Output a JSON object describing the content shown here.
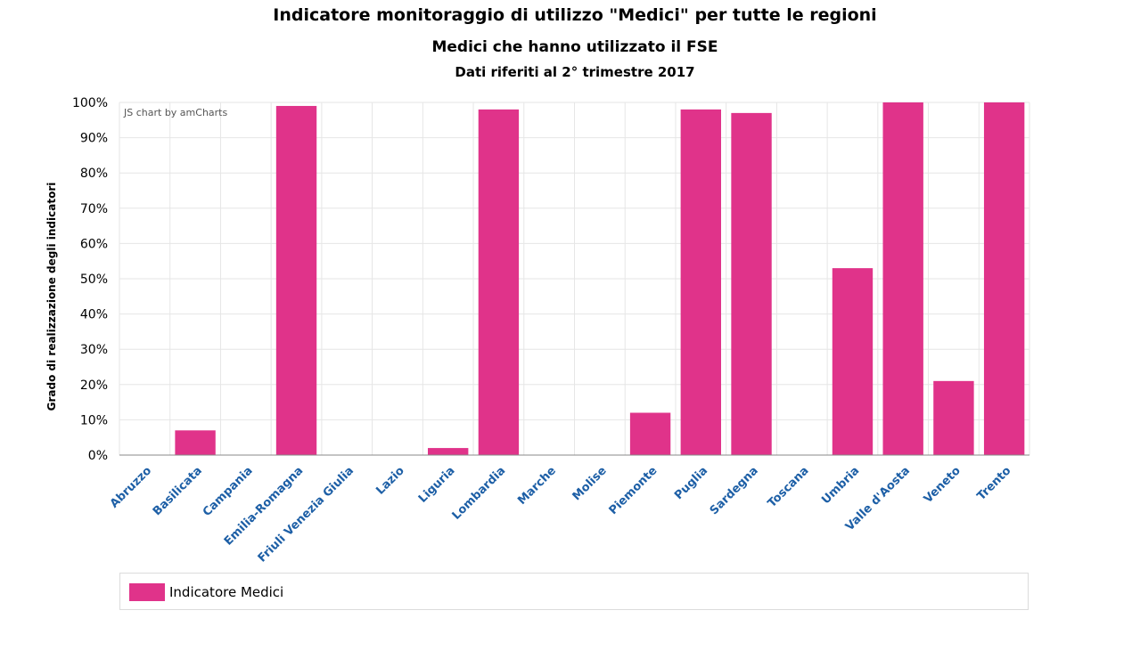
{
  "header": {
    "title": "Indicatore monitoraggio di utilizzo \"Medici\" per tutte le regioni",
    "subtitle": "Medici che hanno utilizzato il FSE",
    "subtitle2": "Dati riferiti al 2° trimestre 2017"
  },
  "credit": "JS chart by amCharts",
  "colors": {
    "bar": "#e0338a",
    "tick_label": "#1d5fa6",
    "grid": "#e6e6e6"
  },
  "chart_data": {
    "type": "bar",
    "categories": [
      "Abruzzo",
      "Basilicata",
      "Campania",
      "Emilia-Romagna",
      "Friuli Venezia Giulia",
      "Lazio",
      "Liguria",
      "Lombardia",
      "Marche",
      "Molise",
      "Piemonte",
      "Puglia",
      "Sardegna",
      "Toscana",
      "Umbria",
      "Valle d'Aosta",
      "Veneto",
      "Trento"
    ],
    "series": [
      {
        "name": "Indicatore Medici",
        "values": [
          0,
          7,
          0,
          99,
          0,
          0,
          2,
          98,
          0,
          0,
          12,
          98,
          97,
          0,
          53,
          100,
          21,
          100
        ]
      }
    ],
    "ylabel": "Grado di realizzazione degli indicatori",
    "ylim": [
      0,
      100
    ],
    "yticks": [
      "0%",
      "10%",
      "20%",
      "30%",
      "40%",
      "50%",
      "60%",
      "70%",
      "80%",
      "90%",
      "100%"
    ],
    "grid": true,
    "legend_position": "bottom"
  },
  "legend": {
    "items": [
      {
        "label": "Indicatore Medici"
      }
    ]
  }
}
